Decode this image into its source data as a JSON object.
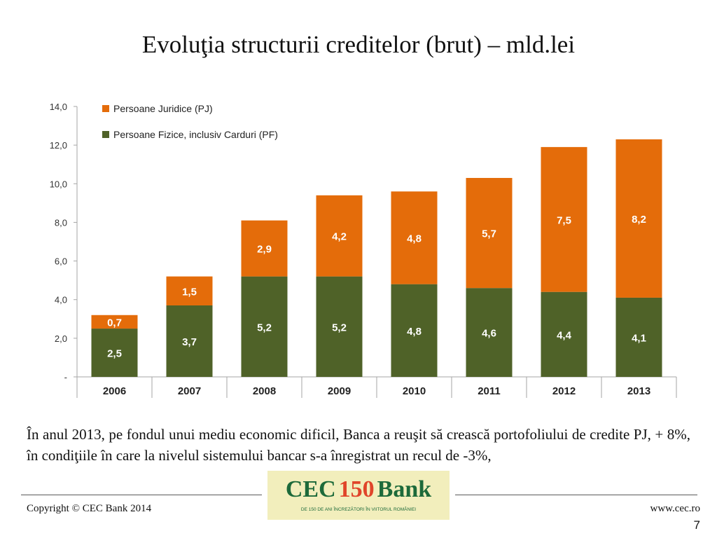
{
  "slide": {
    "title": "Evoluţia structurii creditelor (brut) – mld.lei",
    "body_text": "În anul 2013, pe fondul unui mediu economic dificil, Banca a reuşit să crească portofoliului de credite PJ, + 8%, în condiţiile în care la nivelul sistemului bancar s-a înregistrat un recul de -3%,"
  },
  "chart_data": {
    "type": "bar",
    "stacked": true,
    "categories": [
      "2006",
      "2007",
      "2008",
      "2009",
      "2010",
      "2011",
      "2012",
      "2013"
    ],
    "series": [
      {
        "name": "Persoane Fizice, inclusiv Carduri (PF)",
        "color": "#4f6228",
        "values": [
          2.5,
          3.7,
          5.2,
          5.2,
          4.8,
          4.6,
          4.4,
          4.1
        ],
        "labels": [
          "2,5",
          "3,7",
          "5,2",
          "5,2",
          "4,8",
          "4,6",
          "4,4",
          "4,1"
        ]
      },
      {
        "name": "Persoane Juridice (PJ)",
        "color": "#e46c0a",
        "values": [
          0.7,
          1.5,
          2.9,
          4.2,
          4.8,
          5.7,
          7.5,
          8.2
        ],
        "labels": [
          "0,7",
          "1,5",
          "2,9",
          "4,2",
          "4,8",
          "5,7",
          "7,5",
          "8,2"
        ]
      }
    ],
    "legend": [
      {
        "label": "Persoane Juridice (PJ)",
        "color": "#e46c0a"
      },
      {
        "label": "Persoane Fizice, inclusiv Carduri (PF)",
        "color": "#4f6228"
      }
    ],
    "legend_position": "top-left",
    "y_ticks": [
      {
        "value": 0,
        "label": "-"
      },
      {
        "value": 2,
        "label": "2,0"
      },
      {
        "value": 4,
        "label": "4,0"
      },
      {
        "value": 6,
        "label": "6,0"
      },
      {
        "value": 8,
        "label": "8,0"
      },
      {
        "value": 10,
        "label": "10,0"
      },
      {
        "value": 12,
        "label": "12,0"
      },
      {
        "value": 14,
        "label": "14,0"
      }
    ],
    "ylim": [
      0,
      14
    ],
    "grid": false
  },
  "footer": {
    "copyright": "Copyright © CEC Bank 2014",
    "website": "www.cec.ro",
    "page_number": "7"
  },
  "logo": {
    "text_left": "CEC",
    "text_number": "150",
    "text_right": "Bank",
    "tagline": "DE 150 DE ANI ÎNCREZĂTORI ÎN VIITORUL ROMÂNIEI"
  }
}
